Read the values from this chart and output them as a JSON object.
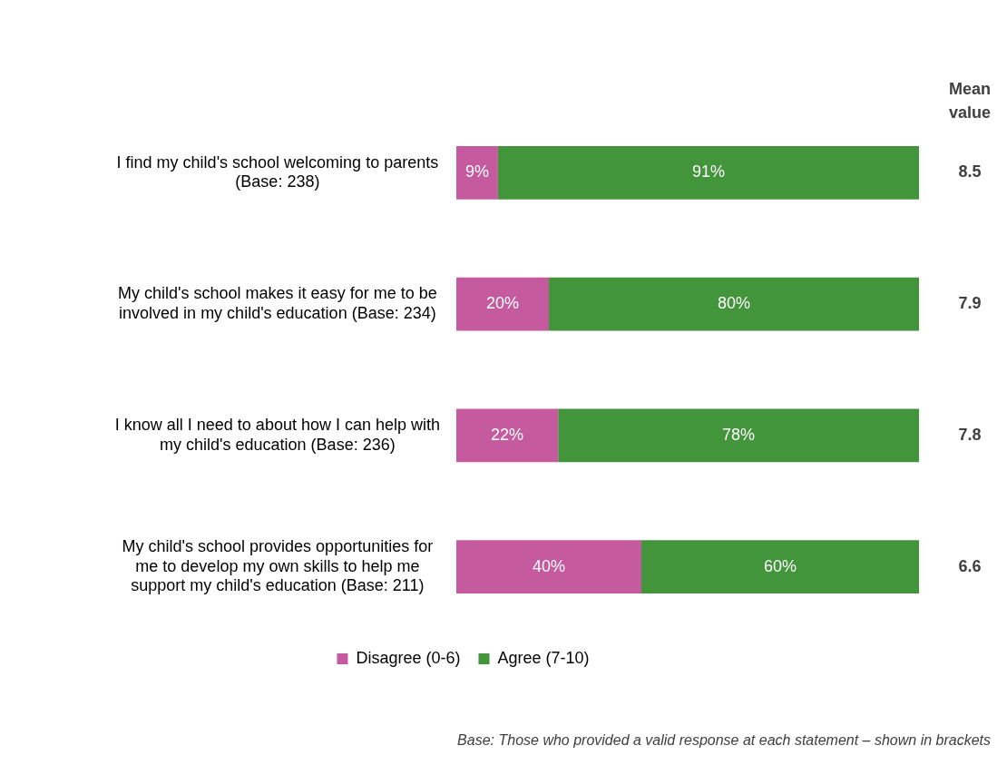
{
  "chart_data": {
    "type": "bar",
    "orientation": "horizontal",
    "stacked": true,
    "legend": "bottom",
    "tick_labels": "y",
    "categories": [
      "I find my child's school welcoming to parents (Base: 238)",
      "My child's school makes it easy for me to be involved in my child's education (Base: 234)",
      "I know all I need to about how I can help with my child's education (Base: 236)",
      "My child's school provides opportunities for me to develop my own skills to help me support my child's education (Base: 211)"
    ],
    "series": [
      {
        "name": "Disagree (0-6)",
        "color": "#c65a9f",
        "values": [
          9,
          20,
          22,
          40
        ],
        "value_labels": [
          "9%",
          "20%",
          "22%",
          "40%"
        ]
      },
      {
        "name": "Agree (7-10)",
        "color": "#43953b",
        "values": [
          91,
          80,
          78,
          60
        ],
        "value_labels": [
          "91%",
          "80%",
          "78%",
          "60%"
        ]
      }
    ],
    "annotations": [
      "Mean value",
      "8.5",
      "7.9",
      "7.8",
      "6.6",
      "Base: Those who provided a valid response at each statement – shown in brackets"
    ]
  }
}
